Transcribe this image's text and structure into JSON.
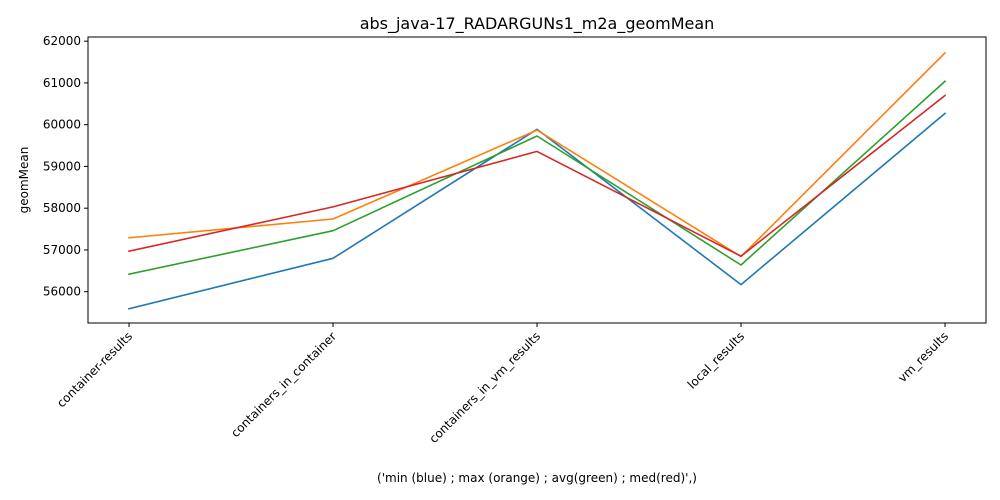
{
  "chart_data": {
    "type": "line",
    "title": "abs_java-17_RADARGUNs1_m2a_geomMean",
    "xlabel": "('min (blue) ; max (orange) ; avg(green) ; med(red)',)",
    "ylabel": "geomMean",
    "categories": [
      "container-results",
      "containers_in_container",
      "containers_in_vm_results",
      "local_results",
      "vm_results"
    ],
    "ylim": [
      55250,
      62100
    ],
    "yticks": [
      56000,
      57000,
      58000,
      59000,
      60000,
      61000,
      62000
    ],
    "grid": false,
    "series": [
      {
        "color": "#1f77b4",
        "values": [
          55590,
          56800,
          59890,
          56170,
          60270
        ]
      },
      {
        "color": "#ff7f0e",
        "values": [
          57290,
          57740,
          59870,
          56840,
          61720
        ]
      },
      {
        "color": "#2ca02c",
        "values": [
          56420,
          57460,
          59730,
          56640,
          61040
        ]
      },
      {
        "color": "#d62728",
        "values": [
          56970,
          58030,
          59360,
          56850,
          60700
        ]
      }
    ]
  }
}
